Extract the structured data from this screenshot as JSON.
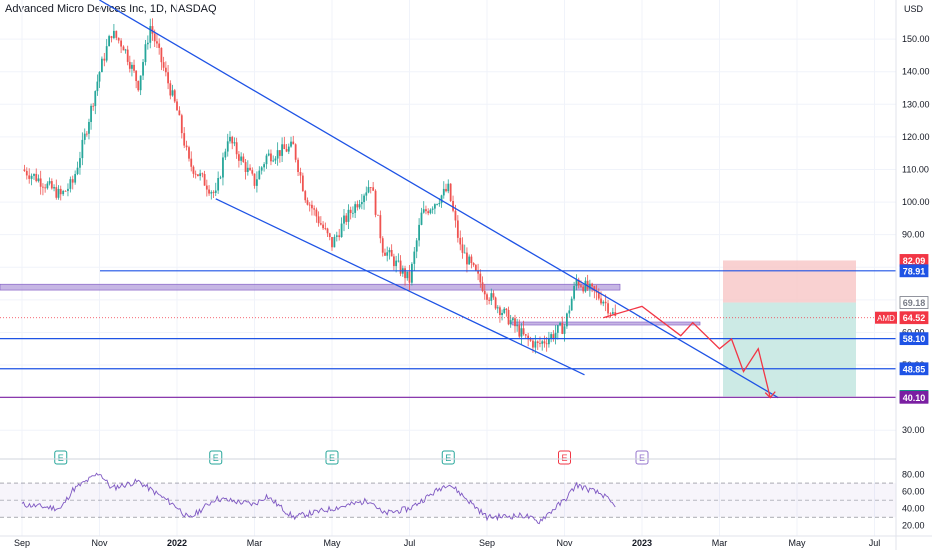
{
  "header": {
    "symbol": "Advanced Micro Devices Inc",
    "interval": "1D",
    "exchange": "NASDAQ"
  },
  "chart_data": {
    "type": "candlestick",
    "currency": "USD",
    "y_ticks": [
      "150.00",
      "140.00",
      "130.00",
      "120.00",
      "110.00",
      "100.00",
      "90.00",
      "80.00",
      "70.00",
      "60.00",
      "50.00",
      "40.00",
      "30.00"
    ],
    "ylim": [
      27,
      162
    ],
    "x_labels": [
      "Sep",
      "Nov",
      "2022",
      "Mar",
      "May",
      "Jul",
      "Sep",
      "Nov",
      "2023",
      "Mar",
      "May",
      "Jul"
    ],
    "price_path": [
      {
        "x": "Sep 2021",
        "y": 110
      },
      {
        "x": "Sep 2021",
        "y": 108
      },
      {
        "x": "Oct 2021",
        "y": 102
      },
      {
        "x": "Oct 2021",
        "y": 106
      },
      {
        "x": "Oct 2021",
        "y": 120
      },
      {
        "x": "Nov 2021",
        "y": 140
      },
      {
        "x": "Nov 2021",
        "y": 152
      },
      {
        "x": "Nov 2021",
        "y": 148
      },
      {
        "x": "Dec 2021",
        "y": 136
      },
      {
        "x": "Dec 2021",
        "y": 154
      },
      {
        "x": "Jan 2022",
        "y": 128
      },
      {
        "x": "Jan 2022",
        "y": 112
      },
      {
        "x": "Feb 2022",
        "y": 102
      },
      {
        "x": "Feb 2022",
        "y": 120
      },
      {
        "x": "Mar 2022",
        "y": 106
      },
      {
        "x": "Mar 2022",
        "y": 114
      },
      {
        "x": "Apr 2022",
        "y": 117
      },
      {
        "x": "Apr 2022",
        "y": 102
      },
      {
        "x": "May 2022",
        "y": 87
      },
      {
        "x": "May 2022",
        "y": 94
      },
      {
        "x": "Jun 2022",
        "y": 106
      },
      {
        "x": "Jun 2022",
        "y": 86
      },
      {
        "x": "Jul 2022",
        "y": 76
      },
      {
        "x": "Jul 2022",
        "y": 96
      },
      {
        "x": "Aug 2022",
        "y": 104
      },
      {
        "x": "Aug 2022",
        "y": 86
      },
      {
        "x": "Sep 2022",
        "y": 72
      },
      {
        "x": "Oct 2022",
        "y": 58
      },
      {
        "x": "Oct 2022",
        "y": 56
      },
      {
        "x": "Nov 2022",
        "y": 62
      },
      {
        "x": "Nov 2022",
        "y": 76
      },
      {
        "x": "Dec 2022",
        "y": 70
      },
      {
        "x": "Dec 2022",
        "y": 64.52
      }
    ],
    "projection_path": [
      {
        "x": "Dec 2022",
        "y": 64.52
      },
      {
        "x": "Jan 2023",
        "y": 68
      },
      {
        "x": "Feb 2023",
        "y": 59
      },
      {
        "x": "Feb 2023",
        "y": 63
      },
      {
        "x": "Mar 2023",
        "y": 55
      },
      {
        "x": "Mar 2023",
        "y": 58
      },
      {
        "x": "Mar 2023",
        "y": 48
      },
      {
        "x": "Apr 2023",
        "y": 55
      },
      {
        "x": "Apr 2023",
        "y": 40
      }
    ],
    "trend_channel": {
      "upper": [
        {
          "x": "Nov 2021",
          "y": 162
        },
        {
          "x": "Apr 2023",
          "y": 40
        }
      ],
      "lower": [
        {
          "x": "Feb 2022",
          "y": 101
        },
        {
          "x": "Nov 2022",
          "y": 47
        }
      ]
    },
    "horizontal_levels": [
      78.91,
      58.1,
      48.85,
      40.1
    ],
    "zones": [
      {
        "from": 74.8,
        "to": 73.0,
        "color": "#b39ddb"
      },
      {
        "from": 63.2,
        "to": 62.3,
        "color": "#b39ddb"
      }
    ],
    "position": {
      "stop": 82.09,
      "entry": 69.18,
      "target": 40.37
    },
    "last_price": {
      "ticker": "AMD",
      "value": "64.52"
    },
    "price_labels": [
      {
        "text": "82.09",
        "value": 82.09,
        "color": "#f23645"
      },
      {
        "text": "78.91",
        "value": 78.91,
        "color": "#1e53e5"
      },
      {
        "text": "69.18",
        "value": 69.18,
        "color": "#787b86"
      },
      {
        "text": "64.52",
        "value": 64.52,
        "color": "#f23645"
      },
      {
        "text": "58.10",
        "value": 58.1,
        "color": "#1e53e5"
      },
      {
        "text": "48.85",
        "value": 48.85,
        "color": "#1e53e5"
      },
      {
        "text": "40.37",
        "value": 40.37,
        "color": "#089981"
      },
      {
        "text": "40.10",
        "value": 40.1,
        "color": "#7b1fa2"
      }
    ],
    "earnings_markers": [
      {
        "label": "E",
        "x": "Oct 2021",
        "style": "past"
      },
      {
        "label": "E",
        "x": "Feb 2022",
        "style": "past"
      },
      {
        "label": "E",
        "x": "May 2022",
        "style": "past"
      },
      {
        "label": "E",
        "x": "Aug 2022",
        "style": "past"
      },
      {
        "label": "E",
        "x": "Nov 2022",
        "style": "past-miss"
      },
      {
        "label": "E",
        "x": "Jan 2023",
        "style": "upcoming"
      }
    ],
    "rsi": {
      "y_ticks": [
        "80.00",
        "60.00",
        "40.00",
        "20.00"
      ],
      "ylim": [
        15,
        90
      ],
      "overbought": 70,
      "middle": 50,
      "oversold": 30,
      "path": [
        {
          "x": "Sep 2021",
          "y": 45
        },
        {
          "x": "Oct 2021",
          "y": 40
        },
        {
          "x": "Oct 2021",
          "y": 62
        },
        {
          "x": "Nov 2021",
          "y": 82
        },
        {
          "x": "Nov 2021",
          "y": 64
        },
        {
          "x": "Dec 2021",
          "y": 72
        },
        {
          "x": "Jan 2022",
          "y": 42
        },
        {
          "x": "Jan 2022",
          "y": 28
        },
        {
          "x": "Feb 2022",
          "y": 52
        },
        {
          "x": "Mar 2022",
          "y": 45
        },
        {
          "x": "Mar 2022",
          "y": 55
        },
        {
          "x": "Apr 2022",
          "y": 30
        },
        {
          "x": "May 2022",
          "y": 40
        },
        {
          "x": "Jun 2022",
          "y": 50
        },
        {
          "x": "Jun 2022",
          "y": 34
        },
        {
          "x": "Jul 2022",
          "y": 40
        },
        {
          "x": "Aug 2022",
          "y": 70
        },
        {
          "x": "Aug 2022",
          "y": 58
        },
        {
          "x": "Sep 2022",
          "y": 30
        },
        {
          "x": "Oct 2022",
          "y": 32
        },
        {
          "x": "Oct 2022",
          "y": 24
        },
        {
          "x": "Nov 2022",
          "y": 50
        },
        {
          "x": "Nov 2022",
          "y": 68
        },
        {
          "x": "Dec 2022",
          "y": 56
        },
        {
          "x": "Dec 2022",
          "y": 42
        }
      ]
    }
  },
  "colors": {
    "trendline": "#1e53e5",
    "projection": "#f23645",
    "zone_fill": "#b39ddb",
    "stop_zone": "#f7c5c6",
    "target_zone": "#c3e6e0",
    "rsi_line": "#7e57c2",
    "bull": "#26a69a",
    "bear": "#ef5350",
    "grid": "#f0f3fa",
    "axis_text": "#131722"
  }
}
